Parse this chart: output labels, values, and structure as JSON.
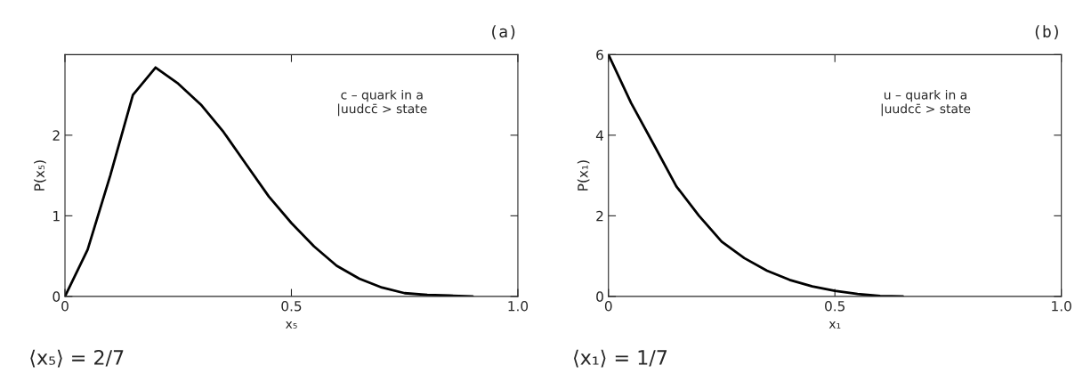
{
  "chart_data": [
    {
      "type": "line",
      "title": "(a)",
      "xlabel": "x₅",
      "ylabel": "P(x₅)",
      "x": [
        0,
        0.05,
        0.1,
        0.15,
        0.2,
        0.25,
        0.3,
        0.35,
        0.4,
        0.45,
        0.5,
        0.55,
        0.6,
        0.65,
        0.7,
        0.75,
        0.8,
        0.85,
        0.9
      ],
      "series": [
        {
          "color": "#000000",
          "values": [
            0,
            0.58,
            1.5,
            2.5,
            2.84,
            2.64,
            2.38,
            2.04,
            1.64,
            1.24,
            0.91,
            0.62,
            0.38,
            0.22,
            0.11,
            0.04,
            0.02,
            0.01,
            0
          ]
        }
      ],
      "xlim": [
        0,
        1
      ],
      "ylim": [
        0,
        3
      ],
      "xticks": [
        0,
        0.5,
        {
          "value": 1,
          "label": "1.0"
        }
      ],
      "yticks": [
        0,
        1,
        2
      ],
      "annotations": [
        "c – quark in a\n|uudcc̄ > state",
        "⟨x₅⟩ = 2/7"
      ]
    },
    {
      "type": "line",
      "title": "(b)",
      "xlabel": "x₁",
      "ylabel": "P(x₁)",
      "x": [
        0,
        0.05,
        0.1,
        0.15,
        0.2,
        0.25,
        0.3,
        0.35,
        0.4,
        0.45,
        0.5,
        0.55,
        0.6,
        0.65
      ],
      "series": [
        {
          "color": "#000000",
          "values": [
            6,
            4.8,
            3.77,
            2.73,
            2.0,
            1.36,
            0.95,
            0.64,
            0.41,
            0.25,
            0.14,
            0.06,
            0.01,
            0
          ]
        }
      ],
      "xlim": [
        0,
        1
      ],
      "ylim": [
        0,
        6
      ],
      "xticks": [
        0,
        0.5,
        {
          "value": 1,
          "label": "1.0"
        }
      ],
      "yticks": [
        0,
        2,
        4,
        6
      ],
      "annotations": [
        "u – quark in a\n|uudcc̄ > state",
        "⟨x₁⟩ = 1/7"
      ]
    }
  ]
}
